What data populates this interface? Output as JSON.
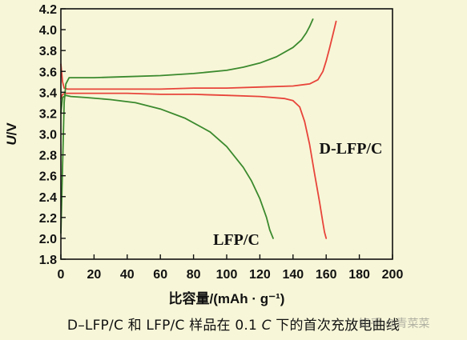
{
  "caption": {
    "before_italic": "D–LFP/C 和 LFP/C 样品在 0.1 ",
    "italic": "C",
    "after_italic": " 下的首次充放电曲线"
  },
  "watermark": "知乎 @青菜菜",
  "chart_data": {
    "type": "line",
    "title": "",
    "xlabel": "比容量/(mAh · g⁻¹)",
    "ylabel_italic": "U",
    "ylabel_rest": "/V",
    "xlim": [
      0,
      200
    ],
    "ylim": [
      1.8,
      4.2
    ],
    "xticks": [
      "0",
      "20",
      "40",
      "60",
      "80",
      "100",
      "120",
      "140",
      "160",
      "180",
      "200"
    ],
    "yticks": [
      "1.8",
      "2.0",
      "2.2",
      "2.4",
      "2.6",
      "2.8",
      "3.0",
      "3.2",
      "3.4",
      "3.6",
      "3.8",
      "4.0",
      "4.2"
    ],
    "grid": false,
    "annotations": [
      {
        "text": "D-LFP/C",
        "series": "D-LFP/C"
      },
      {
        "text": "LFP/C",
        "series": "LFP/C"
      }
    ],
    "series": [
      {
        "name": "D-LFP/C",
        "curve": "charge",
        "color": "#e8443a",
        "x": [
          0,
          1,
          2,
          4,
          8,
          20,
          40,
          60,
          80,
          100,
          120,
          140,
          150,
          155,
          158,
          160,
          162,
          164,
          166
        ],
        "y": [
          3.67,
          3.5,
          3.44,
          3.43,
          3.43,
          3.43,
          3.43,
          3.43,
          3.44,
          3.44,
          3.45,
          3.46,
          3.48,
          3.52,
          3.6,
          3.7,
          3.82,
          3.95,
          4.08
        ]
      },
      {
        "name": "D-LFP/C",
        "curve": "discharge",
        "color": "#e8443a",
        "x": [
          0,
          1,
          3,
          8,
          20,
          40,
          60,
          80,
          100,
          120,
          135,
          140,
          144,
          147,
          150,
          153,
          156,
          158,
          159,
          160
        ],
        "y": [
          3.34,
          3.38,
          3.39,
          3.39,
          3.39,
          3.39,
          3.38,
          3.38,
          3.37,
          3.36,
          3.34,
          3.32,
          3.26,
          3.12,
          2.9,
          2.62,
          2.35,
          2.15,
          2.06,
          2.0
        ]
      },
      {
        "name": "LFP/C",
        "curve": "charge",
        "color": "#3b8a2e",
        "x": [
          0,
          2,
          3,
          5,
          10,
          20,
          40,
          60,
          80,
          100,
          110,
          120,
          130,
          140,
          145,
          148,
          150,
          152
        ],
        "y": [
          2.05,
          3.3,
          3.48,
          3.54,
          3.54,
          3.54,
          3.55,
          3.56,
          3.58,
          3.61,
          3.64,
          3.68,
          3.74,
          3.83,
          3.9,
          3.97,
          4.03,
          4.1
        ]
      },
      {
        "name": "LFP/C",
        "curve": "discharge",
        "color": "#3b8a2e",
        "x": [
          0,
          1,
          3,
          6,
          15,
          30,
          45,
          60,
          75,
          90,
          100,
          110,
          115,
          120,
          124,
          126,
          128
        ],
        "y": [
          3.2,
          3.35,
          3.37,
          3.36,
          3.35,
          3.33,
          3.3,
          3.24,
          3.15,
          3.02,
          2.88,
          2.68,
          2.55,
          2.38,
          2.2,
          2.08,
          2.0
        ]
      }
    ]
  }
}
